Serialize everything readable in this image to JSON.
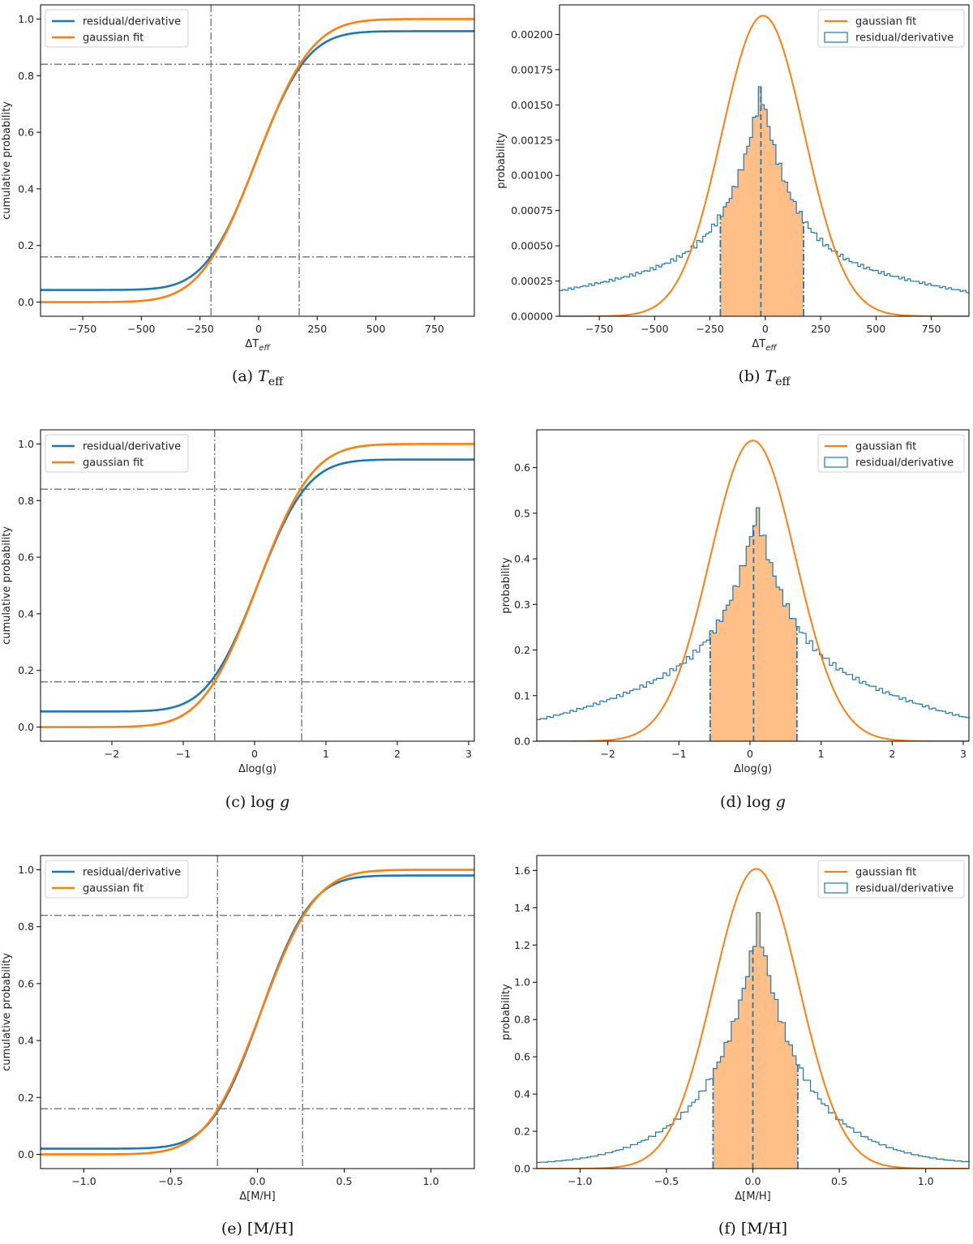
{
  "figure": {
    "colors": {
      "blue": "#1f77b4",
      "orange": "#ff7f0e",
      "fill": "#ffbf86",
      "guide": "#7f7f7f"
    }
  },
  "chart_data": [
    {
      "id": "a",
      "type": "line",
      "caption": "(a) T_eff",
      "xlabel": "ΔT_eff",
      "ylabel": "cumulative probability",
      "xlim": [
        -930,
        920
      ],
      "ylim": [
        -0.05,
        1.05
      ],
      "xticks": [
        -750,
        -500,
        -250,
        0,
        250,
        500,
        750
      ],
      "yticks": [
        0.0,
        0.2,
        0.4,
        0.6,
        0.8,
        1.0
      ],
      "ytick_labels": [
        "0.0",
        "0.2",
        "0.4",
        "0.6",
        "0.8",
        "1.0"
      ],
      "legend": [
        "residual/derivative",
        "gaussian fit"
      ],
      "legend_loc": "upper left",
      "center": -10,
      "sigma": 187,
      "tail": 0.043,
      "tail_scale": 9,
      "vlines": [
        -203,
        173
      ],
      "hlines": [
        0.16,
        0.84
      ]
    },
    {
      "id": "b",
      "type": "histogram",
      "caption": "(b) T_eff",
      "xlabel": "ΔT_eff",
      "ylabel": "probability",
      "xlim": [
        -930,
        920
      ],
      "ylim": [
        0,
        0.00221
      ],
      "xticks": [
        -750,
        -500,
        -250,
        0,
        250,
        500,
        750
      ],
      "yticks": [
        0,
        0.00025,
        0.0005,
        0.00075,
        0.001,
        0.00125,
        0.0015,
        0.00175,
        0.002
      ],
      "ytick_labels": [
        "0.00000",
        "0.00025",
        "0.00050",
        "0.00075",
        "0.00100",
        "0.00125",
        "0.00150",
        "0.00175",
        "0.00200"
      ],
      "legend": [
        "gaussian fit",
        "residual/derivative"
      ],
      "legend_loc": "upper right",
      "gauss_center": -10,
      "gauss_sigma": 187,
      "center": -20,
      "peak": 0.00149,
      "core_width": 155,
      "tail_width": 1600,
      "tail_frac": 0.14,
      "bins": 140,
      "shade": [
        -203,
        173
      ],
      "median": -20
    },
    {
      "id": "c",
      "type": "line",
      "caption": "(c) log g",
      "xlabel": "Δlog(g)",
      "ylabel": "cumulative probability",
      "xlim": [
        -3.0,
        3.08
      ],
      "ylim": [
        -0.05,
        1.05
      ],
      "xticks": [
        -2,
        -1,
        0,
        1,
        2,
        3
      ],
      "yticks": [
        0.0,
        0.2,
        0.4,
        0.6,
        0.8,
        1.0
      ],
      "ytick_labels": [
        "0.0",
        "0.2",
        "0.4",
        "0.6",
        "0.8",
        "1.0"
      ],
      "legend": [
        "residual/derivative",
        "gaussian fit"
      ],
      "legend_loc": "upper left",
      "center": 0.04,
      "sigma": 0.605,
      "tail": 0.055,
      "tail_scale": 0.018,
      "vlines": [
        -0.56,
        0.66
      ],
      "hlines": [
        0.16,
        0.84
      ]
    },
    {
      "id": "d",
      "type": "histogram",
      "caption": "(d) log g",
      "xlabel": "Δlog(g)",
      "ylabel": "probability",
      "xlim": [
        -3.0,
        3.08
      ],
      "ylim": [
        0,
        0.683
      ],
      "xticks": [
        -2,
        -1,
        0,
        1,
        2,
        3
      ],
      "yticks": [
        0.0,
        0.1,
        0.2,
        0.3,
        0.4,
        0.5,
        0.6
      ],
      "ytick_labels": [
        "0.0",
        "0.1",
        "0.2",
        "0.3",
        "0.4",
        "0.5",
        "0.6"
      ],
      "legend": [
        "gaussian fit",
        "residual/derivative"
      ],
      "legend_loc": "upper right",
      "gauss_center": 0.04,
      "gauss_sigma": 0.605,
      "center": 0.1,
      "peak": 0.452,
      "core_width": 0.5,
      "tail_width": 4.2,
      "tail_frac": 0.2,
      "bins": 130,
      "shade": [
        -0.56,
        0.66
      ],
      "median": 0.05
    },
    {
      "id": "e",
      "type": "line",
      "caption": "(e) [M/H]",
      "xlabel": "Δ[M/H]",
      "ylabel": "cumulative probability",
      "xlim": [
        -1.25,
        1.25
      ],
      "ylim": [
        -0.05,
        1.05
      ],
      "xticks": [
        -1.0,
        -0.5,
        0.0,
        0.5,
        1.0
      ],
      "xtick_labels": [
        "−1.0",
        "−0.5",
        "0.0",
        "0.5",
        "1.0"
      ],
      "yticks": [
        0.0,
        0.2,
        0.4,
        0.6,
        0.8,
        1.0
      ],
      "ytick_labels": [
        "0.0",
        "0.2",
        "0.4",
        "0.6",
        "0.8",
        "1.0"
      ],
      "legend": [
        "residual/derivative",
        "gaussian fit"
      ],
      "legend_loc": "upper left",
      "center": 0.02,
      "sigma": 0.248,
      "tail": 0.02,
      "tail_scale": 0.02,
      "vlines": [
        -0.23,
        0.26
      ],
      "hlines": [
        0.16,
        0.84
      ]
    },
    {
      "id": "f",
      "type": "histogram",
      "caption": "(f) [M/H]",
      "xlabel": "Δ[M/H]",
      "ylabel": "probability",
      "xlim": [
        -1.25,
        1.25
      ],
      "ylim": [
        0,
        1.68
      ],
      "xticks": [
        -1.0,
        -0.5,
        0.0,
        0.5,
        1.0
      ],
      "xtick_labels": [
        "−1.0",
        "−0.5",
        "0.0",
        "0.5",
        "1.0"
      ],
      "yticks": [
        0.0,
        0.2,
        0.4,
        0.6,
        0.8,
        1.0,
        1.2,
        1.4,
        1.6
      ],
      "ytick_labels": [
        "0.0",
        "0.2",
        "0.4",
        "0.6",
        "0.8",
        "1.0",
        "1.2",
        "1.4",
        "1.6"
      ],
      "legend": [
        "gaussian fit",
        "residual/derivative"
      ],
      "legend_loc": "upper right",
      "gauss_center": 0.02,
      "gauss_sigma": 0.248,
      "center": 0.03,
      "peak": 1.26,
      "core_width": 0.215,
      "tail_width": 1.1,
      "tail_frac": 0.1,
      "bins": 120,
      "shade": [
        -0.23,
        0.26
      ],
      "median": 0.0
    }
  ]
}
